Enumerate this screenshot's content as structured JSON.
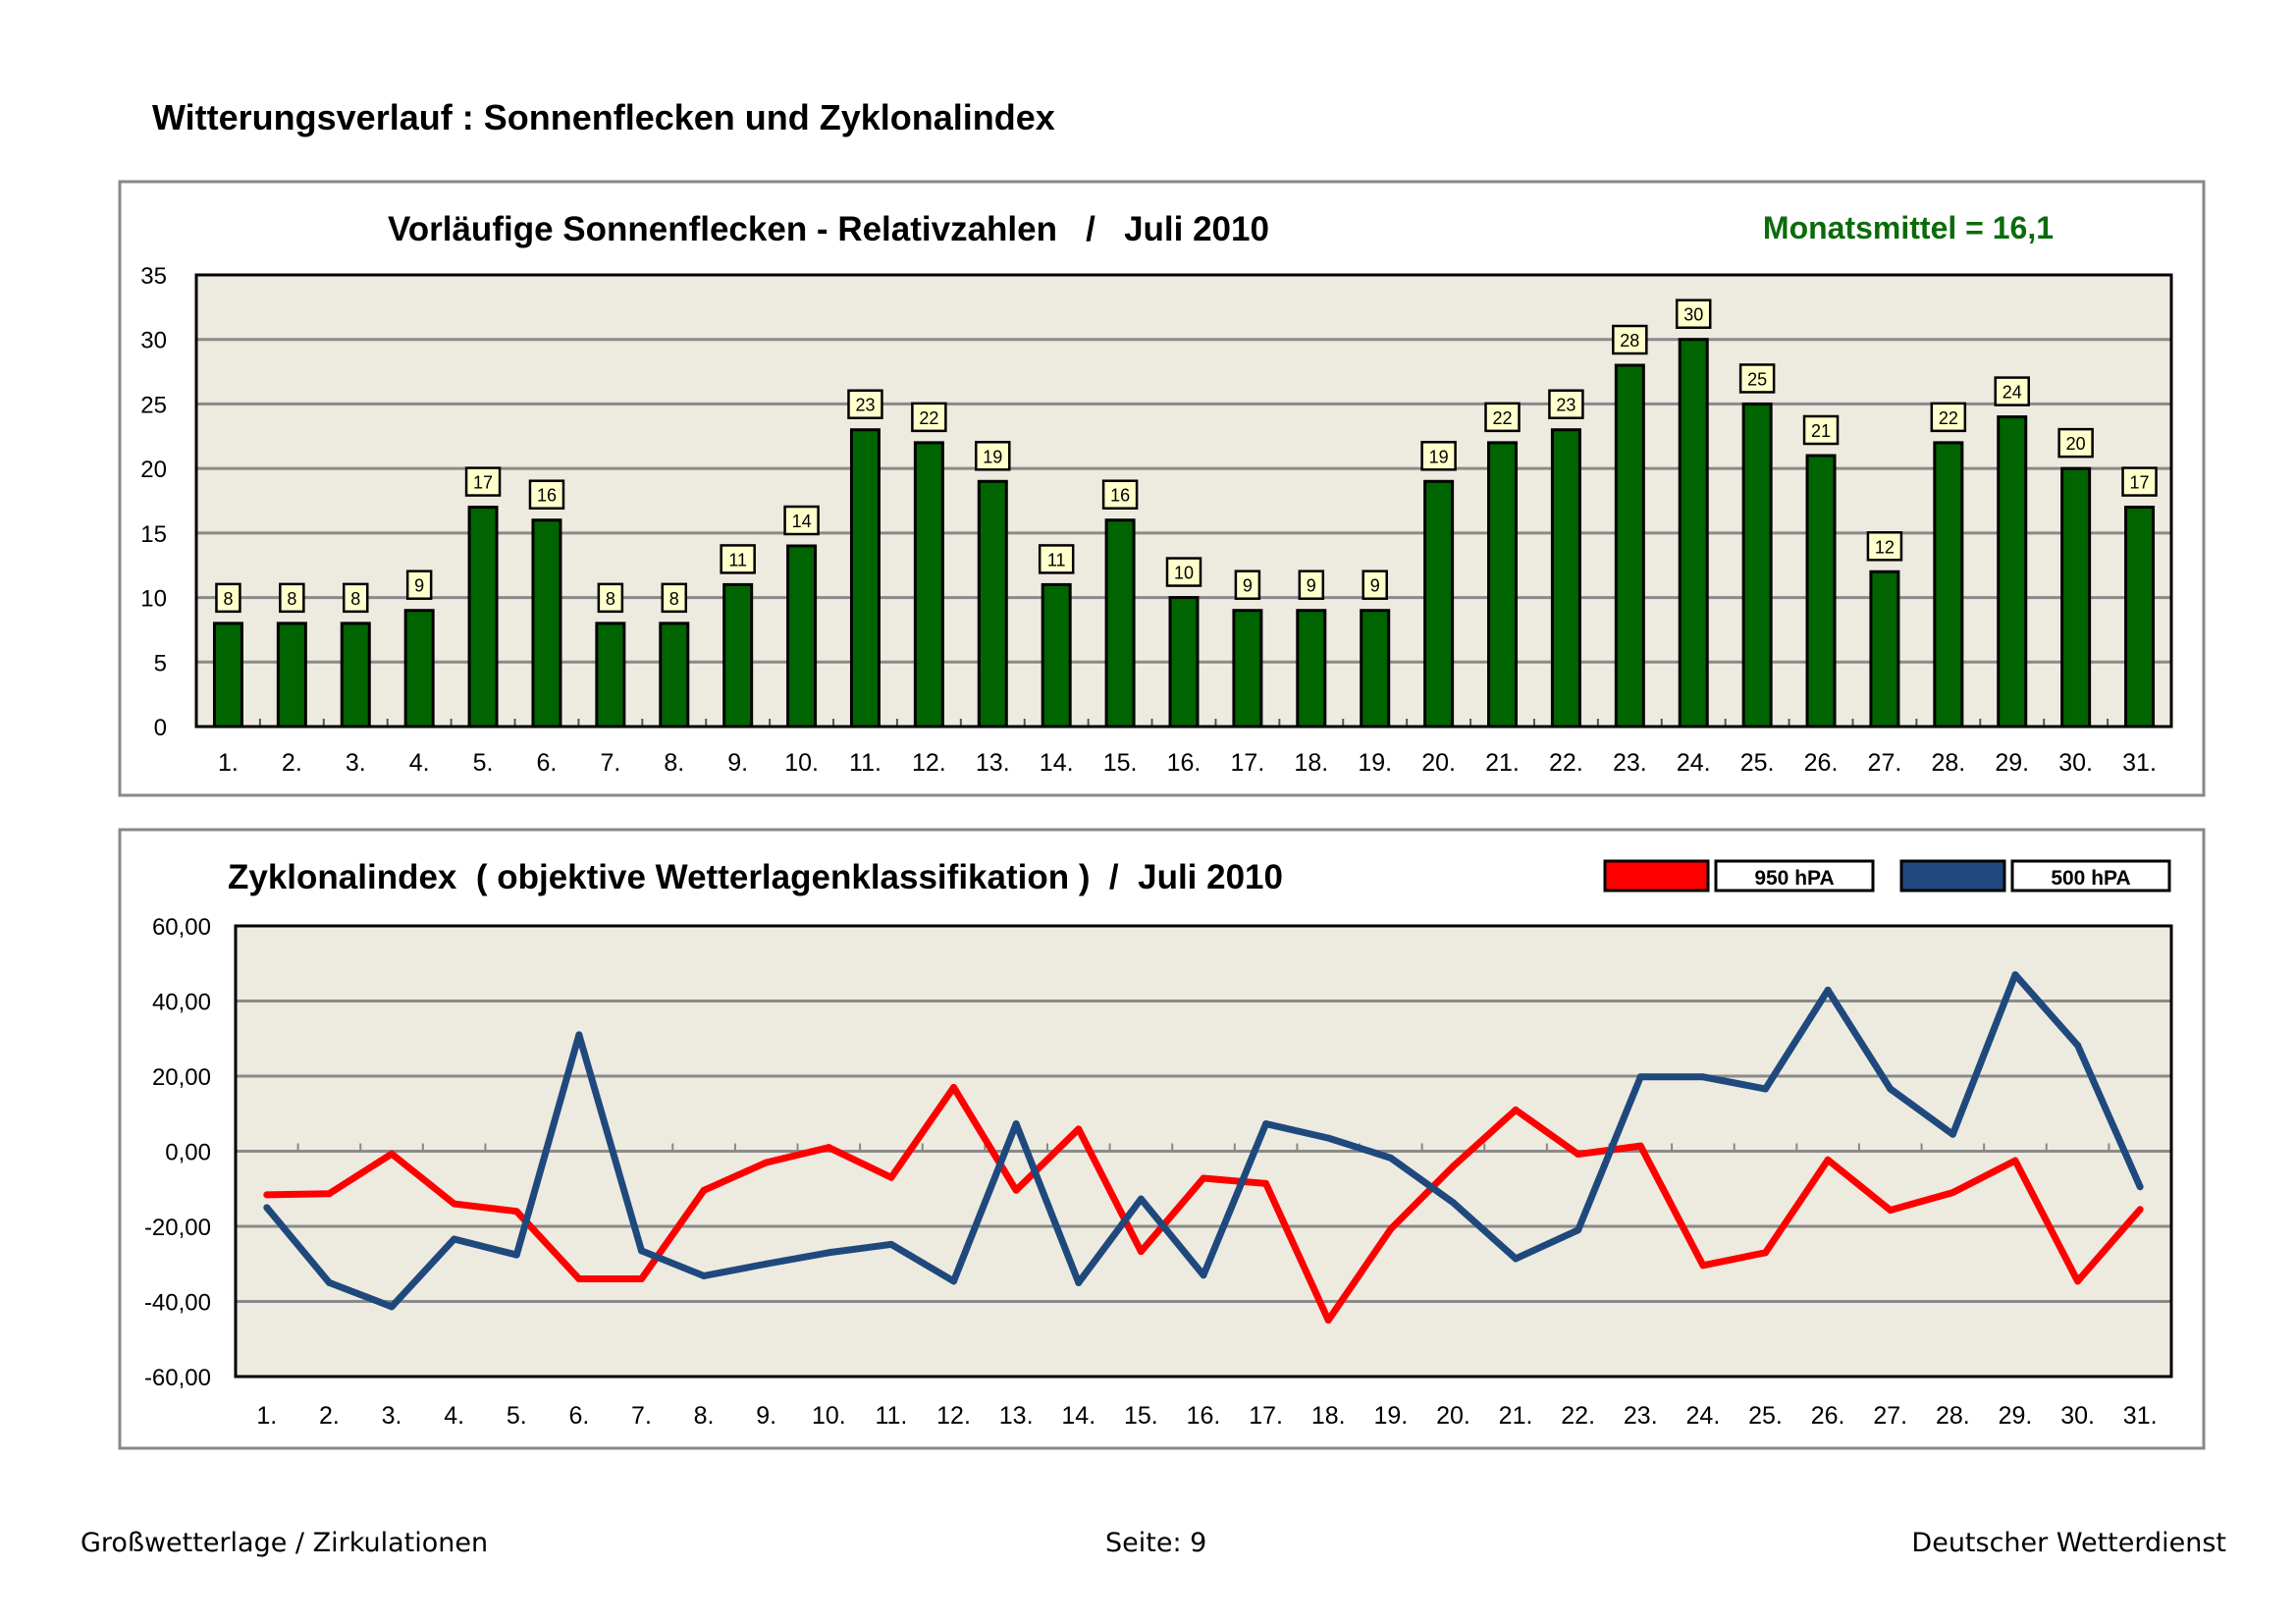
{
  "page_title": "Witterungsverlauf : Sonnenflecken und Zyklonalindex",
  "footer": {
    "left": "Großwetterlage / Zirkulationen",
    "center": "Seite: 9",
    "right": "Deutscher Wetterdienst"
  },
  "chart_data": [
    {
      "type": "bar",
      "title": "Vorläufige Sonnenflecken - Relativzahlen   /   Juli 2010",
      "annotation": "Monatsmittel = 16,1",
      "categories": [
        "1.",
        "2.",
        "3.",
        "4.",
        "5.",
        "6.",
        "7.",
        "8.",
        "9.",
        "10.",
        "11.",
        "12.",
        "13.",
        "14.",
        "15.",
        "16.",
        "17.",
        "18.",
        "19.",
        "20.",
        "21.",
        "22.",
        "23.",
        "24.",
        "25.",
        "26.",
        "27.",
        "28.",
        "29.",
        "30.",
        "31."
      ],
      "values": [
        8,
        8,
        8,
        9,
        17,
        16,
        8,
        8,
        11,
        14,
        23,
        22,
        19,
        11,
        16,
        10,
        9,
        9,
        9,
        19,
        22,
        23,
        28,
        30,
        25,
        21,
        12,
        22,
        24,
        20,
        17
      ],
      "ylim": [
        0,
        35
      ],
      "yticks": [
        "0",
        "5",
        "10",
        "15",
        "20",
        "25",
        "30",
        "35"
      ],
      "grid": true,
      "data_labels": true,
      "colors": {
        "bar": "#006400",
        "annotation": "#0b6b0b",
        "plot_bg": "#edeae0",
        "label_bg": "#ffffcc"
      }
    },
    {
      "type": "line",
      "title": "Zyklonalindex  ( objektive Wetterlagenklassifikation )  /  Juli 2010",
      "categories": [
        "1.",
        "2.",
        "3.",
        "4.",
        "5.",
        "6.",
        "7.",
        "8.",
        "9.",
        "10.",
        "11.",
        "12.",
        "13.",
        "14.",
        "15.",
        "16.",
        "17.",
        "18.",
        "19.",
        "20.",
        "21.",
        "22.",
        "23.",
        "24.",
        "25.",
        "26.",
        "27.",
        "28.",
        "29.",
        "30.",
        "31."
      ],
      "series": [
        {
          "name": "950 hPA",
          "color": "#ff0000",
          "values": [
            -11.6,
            -11.3,
            -0.7,
            -14,
            -16,
            -34,
            -34,
            -10.4,
            -3,
            1,
            -7,
            17,
            -10.4,
            5.9,
            -26.7,
            -7.2,
            -8.6,
            -45,
            -20.7,
            -4,
            11,
            -0.8,
            1.4,
            -30.4,
            -27,
            -2.3,
            -15.7,
            -11,
            -2.5,
            -34.6,
            -15.5
          ]
        },
        {
          "name": "500 hPA",
          "color": "#1f497d",
          "values": [
            -15,
            -35,
            -41.4,
            -23.4,
            -27.6,
            31,
            -26.5,
            -33.2,
            -30,
            -27,
            -24.8,
            -34.6,
            7.3,
            -35,
            -12.7,
            -33,
            7.3,
            3.5,
            -1.8,
            -13.7,
            -28.6,
            -21,
            19.8,
            19.8,
            16.6,
            42.9,
            16.6,
            4.5,
            47,
            28.2,
            -9.5
          ]
        }
      ],
      "ylim": [
        -60,
        60
      ],
      "yticks": [
        "-60,00",
        "-40,00",
        "-20,00",
        "0,00",
        "20,00",
        "40,00",
        "60,00"
      ],
      "grid": true,
      "legend_position": "top-right",
      "colors": {
        "plot_bg": "#edeae0"
      }
    }
  ]
}
